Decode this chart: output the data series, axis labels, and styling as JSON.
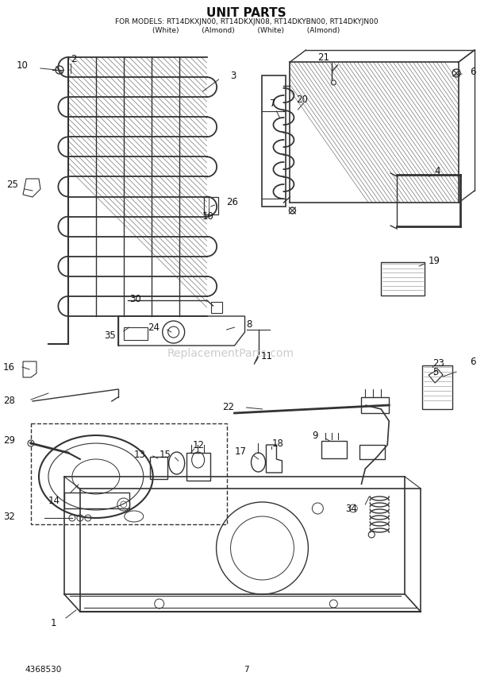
{
  "title": "UNIT PARTS",
  "subtitle_line1": "FOR MODELS: RT14DKXJN00, RT14DKXJN08, RT14DKYBN00, RT14DKYJN00",
  "subtitle_line2": "(White)          (Almond)          (White)          (Almond)",
  "page_number": "7",
  "part_number": "4368530",
  "background_color": "#ffffff",
  "line_color": "#333333",
  "text_color": "#111111",
  "watermark": "ReplacementParts.com",
  "fig_width": 6.2,
  "fig_height": 8.56,
  "dpi": 100,
  "title_fontsize": 11,
  "subtitle_fontsize": 6.5,
  "label_fontsize": 8.5,
  "footer_fontsize": 7.5
}
